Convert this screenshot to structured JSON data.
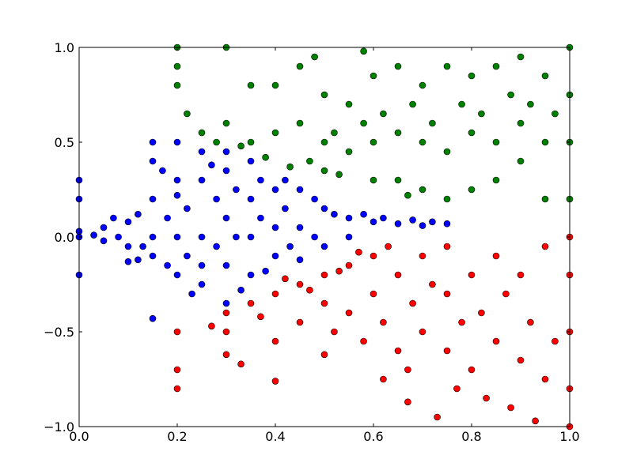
{
  "chart_data": {
    "type": "scatter",
    "title": "",
    "xlabel": "",
    "ylabel": "",
    "xlim": [
      0.0,
      1.0
    ],
    "ylim": [
      -1.0,
      1.0
    ],
    "grid": false,
    "legend": "none",
    "x_ticks": [
      0.0,
      0.2,
      0.4,
      0.6,
      0.8,
      1.0
    ],
    "y_ticks": [
      -1.0,
      -0.5,
      0.0,
      0.5,
      1.0
    ],
    "x_tick_labels": [
      "0.0",
      "0.2",
      "0.4",
      "0.6",
      "0.8",
      "1.0"
    ],
    "y_tick_labels": [
      "−1.0",
      "−0.5",
      "0.0",
      "0.5",
      "1.0"
    ],
    "series": [
      {
        "color": "#0000ff",
        "points": [
          [
            0.0,
            0.0
          ],
          [
            0.0,
            0.3
          ],
          [
            0.0,
            0.2
          ],
          [
            0.0,
            -0.2
          ],
          [
            0.0,
            0.03
          ],
          [
            0.03,
            0.01
          ],
          [
            0.05,
            -0.02
          ],
          [
            0.05,
            0.05
          ],
          [
            0.08,
            0.0
          ],
          [
            0.1,
            0.08
          ],
          [
            0.1,
            -0.05
          ],
          [
            0.1,
            -0.13
          ],
          [
            0.12,
            0.12
          ],
          [
            0.13,
            -0.05
          ],
          [
            0.15,
            0.2
          ],
          [
            0.15,
            0.0
          ],
          [
            0.15,
            -0.1
          ],
          [
            0.15,
            -0.43
          ],
          [
            0.15,
            0.5
          ],
          [
            0.15,
            0.4
          ],
          [
            0.18,
            0.1
          ],
          [
            0.18,
            -0.15
          ],
          [
            0.2,
            0.3
          ],
          [
            0.2,
            0.0
          ],
          [
            0.2,
            -0.2
          ],
          [
            0.2,
            0.5
          ],
          [
            0.2,
            0.22
          ],
          [
            0.22,
            0.15
          ],
          [
            0.22,
            -0.1
          ],
          [
            0.25,
            0.45
          ],
          [
            0.25,
            0.3
          ],
          [
            0.25,
            0.0
          ],
          [
            0.25,
            -0.15
          ],
          [
            0.25,
            -0.25
          ],
          [
            0.28,
            0.2
          ],
          [
            0.28,
            -0.05
          ],
          [
            0.3,
            0.35
          ],
          [
            0.3,
            0.1
          ],
          [
            0.3,
            -0.15
          ],
          [
            0.3,
            -0.35
          ],
          [
            0.32,
            0.25
          ],
          [
            0.32,
            0.0
          ],
          [
            0.35,
            0.4
          ],
          [
            0.35,
            0.2
          ],
          [
            0.35,
            0.0
          ],
          [
            0.35,
            -0.2
          ],
          [
            0.37,
            0.3
          ],
          [
            0.37,
            0.1
          ],
          [
            0.4,
            0.25
          ],
          [
            0.4,
            0.05
          ],
          [
            0.4,
            -0.1
          ],
          [
            0.42,
            0.3
          ],
          [
            0.42,
            0.15
          ],
          [
            0.45,
            0.25
          ],
          [
            0.45,
            0.05
          ],
          [
            0.45,
            -0.12
          ],
          [
            0.48,
            0.2
          ],
          [
            0.48,
            0.0
          ],
          [
            0.5,
            0.15
          ],
          [
            0.5,
            -0.05
          ],
          [
            0.52,
            0.12
          ],
          [
            0.55,
            0.1
          ],
          [
            0.55,
            0.0
          ],
          [
            0.58,
            0.12
          ],
          [
            0.6,
            0.08
          ],
          [
            0.62,
            0.1
          ],
          [
            0.65,
            0.07
          ],
          [
            0.68,
            0.09
          ],
          [
            0.7,
            0.06
          ],
          [
            0.72,
            0.08
          ],
          [
            0.75,
            0.07
          ],
          [
            0.3,
            0.45
          ],
          [
            0.27,
            0.38
          ],
          [
            0.33,
            -0.28
          ],
          [
            0.38,
            -0.18
          ],
          [
            0.17,
            0.35
          ],
          [
            0.12,
            -0.12
          ],
          [
            0.07,
            0.1
          ],
          [
            0.23,
            -0.3
          ],
          [
            0.43,
            -0.05
          ]
        ]
      },
      {
        "color": "#008000",
        "points": [
          [
            0.2,
            0.9
          ],
          [
            0.2,
            1.0
          ],
          [
            0.2,
            0.8
          ],
          [
            0.22,
            0.65
          ],
          [
            0.25,
            0.55
          ],
          [
            0.3,
            1.0
          ],
          [
            0.3,
            0.6
          ],
          [
            0.35,
            0.8
          ],
          [
            0.35,
            0.5
          ],
          [
            0.4,
            0.8
          ],
          [
            0.4,
            0.55
          ],
          [
            0.45,
            0.9
          ],
          [
            0.45,
            0.6
          ],
          [
            0.5,
            0.75
          ],
          [
            0.5,
            0.5
          ],
          [
            0.5,
            0.35
          ],
          [
            0.52,
            0.55
          ],
          [
            0.55,
            0.7
          ],
          [
            0.55,
            0.45
          ],
          [
            0.58,
            0.6
          ],
          [
            0.6,
            0.85
          ],
          [
            0.6,
            0.5
          ],
          [
            0.6,
            0.3
          ],
          [
            0.62,
            0.65
          ],
          [
            0.65,
            0.9
          ],
          [
            0.65,
            0.55
          ],
          [
            0.65,
            0.3
          ],
          [
            0.68,
            0.7
          ],
          [
            0.7,
            0.8
          ],
          [
            0.7,
            0.5
          ],
          [
            0.7,
            0.25
          ],
          [
            0.72,
            0.6
          ],
          [
            0.75,
            0.9
          ],
          [
            0.75,
            0.45
          ],
          [
            0.75,
            0.2
          ],
          [
            0.78,
            0.7
          ],
          [
            0.8,
            0.85
          ],
          [
            0.8,
            0.55
          ],
          [
            0.8,
            0.25
          ],
          [
            0.82,
            0.65
          ],
          [
            0.85,
            0.9
          ],
          [
            0.85,
            0.5
          ],
          [
            0.85,
            0.3
          ],
          [
            0.88,
            0.75
          ],
          [
            0.9,
            0.95
          ],
          [
            0.9,
            0.6
          ],
          [
            0.9,
            0.4
          ],
          [
            0.92,
            0.7
          ],
          [
            0.95,
            0.85
          ],
          [
            0.95,
            0.5
          ],
          [
            0.95,
            0.2
          ],
          [
            0.97,
            0.65
          ],
          [
            1.0,
            1.0
          ],
          [
            1.0,
            0.75
          ],
          [
            1.0,
            0.5
          ],
          [
            1.0,
            0.2
          ],
          [
            0.48,
            0.95
          ],
          [
            0.58,
            0.98
          ],
          [
            0.47,
            0.4
          ],
          [
            0.43,
            0.37
          ],
          [
            0.38,
            0.42
          ],
          [
            0.33,
            0.48
          ],
          [
            0.28,
            0.5
          ],
          [
            0.53,
            0.33
          ],
          [
            0.67,
            0.22
          ]
        ]
      },
      {
        "color": "#ff0000",
        "points": [
          [
            0.2,
            -0.5
          ],
          [
            0.2,
            -0.7
          ],
          [
            0.2,
            -0.8
          ],
          [
            0.3,
            -0.5
          ],
          [
            0.3,
            -0.62
          ],
          [
            0.3,
            -0.4
          ],
          [
            0.33,
            -0.67
          ],
          [
            0.35,
            -0.35
          ],
          [
            0.4,
            -0.55
          ],
          [
            0.4,
            -0.76
          ],
          [
            0.4,
            -0.3
          ],
          [
            0.45,
            -0.45
          ],
          [
            0.45,
            -0.25
          ],
          [
            0.5,
            -0.62
          ],
          [
            0.5,
            -0.35
          ],
          [
            0.5,
            -0.2
          ],
          [
            0.52,
            -0.5
          ],
          [
            0.55,
            -0.4
          ],
          [
            0.55,
            -0.15
          ],
          [
            0.58,
            -0.55
          ],
          [
            0.6,
            -0.3
          ],
          [
            0.6,
            -0.1
          ],
          [
            0.62,
            -0.45
          ],
          [
            0.65,
            -0.6
          ],
          [
            0.65,
            -0.2
          ],
          [
            0.67,
            -0.87
          ],
          [
            0.67,
            -0.7
          ],
          [
            0.68,
            -0.35
          ],
          [
            0.7,
            -0.5
          ],
          [
            0.7,
            -0.1
          ],
          [
            0.72,
            -0.25
          ],
          [
            0.73,
            -0.95
          ],
          [
            0.75,
            -0.6
          ],
          [
            0.75,
            -0.3
          ],
          [
            0.75,
            -0.05
          ],
          [
            0.78,
            -0.45
          ],
          [
            0.8,
            -0.7
          ],
          [
            0.8,
            -0.2
          ],
          [
            0.82,
            -0.4
          ],
          [
            0.83,
            -0.85
          ],
          [
            0.85,
            -0.55
          ],
          [
            0.85,
            -0.1
          ],
          [
            0.87,
            -0.3
          ],
          [
            0.88,
            -0.9
          ],
          [
            0.9,
            -0.65
          ],
          [
            0.9,
            -0.2
          ],
          [
            0.92,
            -0.45
          ],
          [
            0.95,
            -0.75
          ],
          [
            0.95,
            -0.05
          ],
          [
            0.97,
            -0.55
          ],
          [
            1.0,
            -1.0
          ],
          [
            1.0,
            -0.8
          ],
          [
            1.0,
            -0.5
          ],
          [
            1.0,
            -0.2
          ],
          [
            1.0,
            0.0
          ],
          [
            0.42,
            -0.22
          ],
          [
            0.47,
            -0.28
          ],
          [
            0.53,
            -0.18
          ],
          [
            0.57,
            -0.08
          ],
          [
            0.63,
            -0.05
          ],
          [
            0.27,
            -0.47
          ],
          [
            0.37,
            -0.42
          ],
          [
            0.62,
            -0.75
          ],
          [
            0.77,
            -0.8
          ],
          [
            0.93,
            -0.97
          ]
        ]
      }
    ]
  }
}
